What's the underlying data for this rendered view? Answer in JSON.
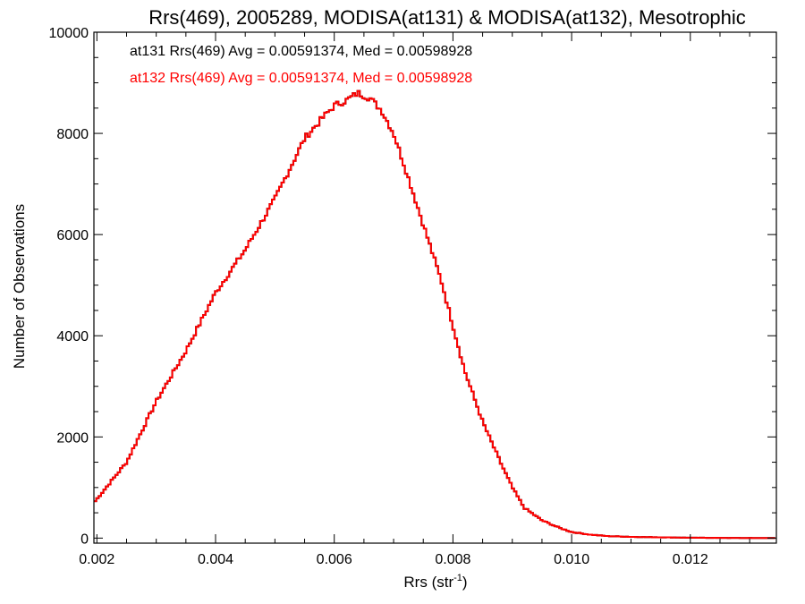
{
  "chart_data": {
    "type": "line",
    "title": "Rrs(469), 2005289, MODISA(at131) & MODISA(at132), Mesotrophic",
    "xlabel": "Rrs (str",
    "xlabel_sup": "-1",
    "xlabel_close": ")",
    "ylabel": "Number of Observations",
    "xlim": [
      0.00195,
      0.01345
    ],
    "ylim": [
      -100,
      10000
    ],
    "x_ticks": [
      {
        "value": 0.002,
        "label": "0.002"
      },
      {
        "value": 0.004,
        "label": "0.004"
      },
      {
        "value": 0.006,
        "label": "0.006"
      },
      {
        "value": 0.008,
        "label": "0.008"
      },
      {
        "value": 0.01,
        "label": "0.010"
      },
      {
        "value": 0.012,
        "label": "0.012"
      }
    ],
    "y_ticks": [
      {
        "value": 0,
        "label": "0"
      },
      {
        "value": 2000,
        "label": "2000"
      },
      {
        "value": 4000,
        "label": "4000"
      },
      {
        "value": 6000,
        "label": "6000"
      },
      {
        "value": 8000,
        "label": "8000"
      },
      {
        "value": 10000,
        "label": "10000"
      }
    ],
    "annotations": [
      {
        "text": "at131 Rrs(469) Avg = 0.00591374, Med = 0.00598928",
        "color": "#000000"
      },
      {
        "text": "at132 Rrs(469) Avg = 0.00591374, Med = 0.00598928",
        "color": "#ff0000"
      }
    ],
    "series": [
      {
        "color": "#000000",
        "x": [
          0.00195,
          0.0025,
          0.003,
          0.0035,
          0.004,
          0.0045,
          0.005,
          0.0055,
          0.0058,
          0.006,
          0.0062,
          0.0064,
          0.0066,
          0.0068,
          0.007,
          0.0072,
          0.0075,
          0.0078,
          0.008,
          0.0082,
          0.0085,
          0.0088,
          0.009,
          0.0092,
          0.0095,
          0.0098,
          0.01,
          0.0103,
          0.0106,
          0.011,
          0.0115,
          0.012,
          0.0125,
          0.013,
          0.01345
        ],
        "y": [
          700,
          1500,
          2700,
          3700,
          4850,
          5700,
          6700,
          7900,
          8300,
          8550,
          8650,
          8800,
          8700,
          8450,
          8000,
          7300,
          6200,
          5100,
          4200,
          3300,
          2300,
          1500,
          1000,
          600,
          350,
          200,
          120,
          70,
          40,
          25,
          15,
          8,
          4,
          2,
          1
        ]
      },
      {
        "color": "#ff0000",
        "x": [
          0.00195,
          0.0025,
          0.003,
          0.0035,
          0.004,
          0.0045,
          0.005,
          0.0055,
          0.0058,
          0.006,
          0.0062,
          0.0064,
          0.0066,
          0.0068,
          0.007,
          0.0072,
          0.0075,
          0.0078,
          0.008,
          0.0082,
          0.0085,
          0.0088,
          0.009,
          0.0092,
          0.0095,
          0.0098,
          0.01,
          0.0103,
          0.0106,
          0.011,
          0.0115,
          0.012,
          0.0125,
          0.013,
          0.01345
        ],
        "y": [
          700,
          1500,
          2700,
          3700,
          4850,
          5700,
          6700,
          7900,
          8300,
          8550,
          8650,
          8800,
          8700,
          8450,
          8000,
          7300,
          6200,
          5100,
          4200,
          3300,
          2300,
          1500,
          1000,
          600,
          350,
          200,
          120,
          70,
          40,
          25,
          15,
          8,
          4,
          2,
          1
        ]
      }
    ]
  }
}
